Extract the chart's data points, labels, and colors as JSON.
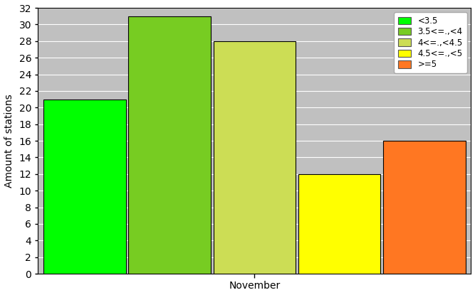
{
  "categories": [
    "<3.5",
    "3.5<=.,<4",
    "4<=.,<4.5",
    "4.5<=.,<5",
    ">=5"
  ],
  "values": [
    21,
    31,
    28,
    12,
    16
  ],
  "bar_colors": [
    "#00ff00",
    "#77cc22",
    "#ccdd55",
    "#ffff00",
    "#ff7722"
  ],
  "bar_edge_color": "#000000",
  "xlabel": "November",
  "ylabel": "Amount of stations",
  "ylim": [
    0,
    32
  ],
  "yticks": [
    0,
    2,
    4,
    6,
    8,
    10,
    12,
    14,
    16,
    18,
    20,
    22,
    24,
    26,
    28,
    30,
    32
  ],
  "plot_bg_color": "#c0c0c0",
  "fig_bg_color": "#ffffff",
  "grid_color": "#ffffff",
  "legend_labels": [
    "<3.5",
    "3.5<=.,<4",
    "4<=.,<4.5",
    "4.5<=.,<5",
    ">=5"
  ],
  "legend_colors": [
    "#00ff00",
    "#77cc22",
    "#ccdd55",
    "#ffff00",
    "#ff7722"
  ],
  "bar_width": 0.97,
  "figsize": [
    6.67,
    4.15
  ],
  "dpi": 100
}
